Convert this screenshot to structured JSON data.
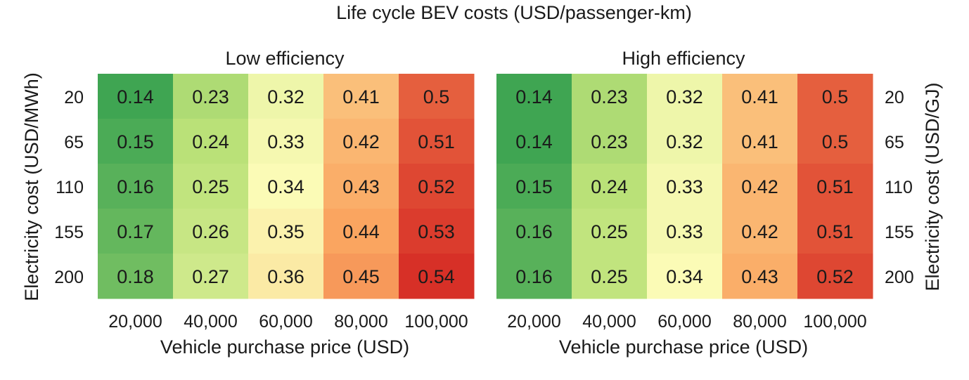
{
  "figure": {
    "title": "Life cycle BEV costs (USD/passenger-km)"
  },
  "colors": {
    "scale_low": "#3fa552",
    "scale_mid": "#fbfbb6",
    "scale_high": "#d73027",
    "text": "#1a1a1a"
  },
  "chart_data": [
    {
      "type": "heatmap",
      "title": "Low efficiency",
      "xlabel": "Vehicle purchase price (USD)",
      "ylabel": "Electricity cost (USD/MWh)",
      "x_categories": [
        "20,000",
        "40,000",
        "60,000",
        "80,000",
        "100,000"
      ],
      "y_categories": [
        "20",
        "65",
        "110",
        "155",
        "200"
      ],
      "values": [
        [
          0.14,
          0.23,
          0.32,
          0.41,
          0.5
        ],
        [
          0.15,
          0.24,
          0.33,
          0.42,
          0.51
        ],
        [
          0.16,
          0.25,
          0.34,
          0.43,
          0.52
        ],
        [
          0.17,
          0.26,
          0.35,
          0.44,
          0.53
        ],
        [
          0.18,
          0.27,
          0.36,
          0.45,
          0.54
        ]
      ],
      "value_labels": [
        [
          "0.14",
          "0.23",
          "0.32",
          "0.41",
          "0.5"
        ],
        [
          "0.15",
          "0.24",
          "0.33",
          "0.42",
          "0.51"
        ],
        [
          "0.16",
          "0.25",
          "0.34",
          "0.43",
          "0.52"
        ],
        [
          "0.17",
          "0.26",
          "0.35",
          "0.44",
          "0.53"
        ],
        [
          "0.18",
          "0.27",
          "0.36",
          "0.45",
          "0.54"
        ]
      ],
      "color_range": [
        0.14,
        0.54
      ]
    },
    {
      "type": "heatmap",
      "title": "High efficiency",
      "xlabel": "Vehicle purchase price (USD)",
      "ylabel": "Electricity cost (USD/GJ)",
      "x_categories": [
        "20,000",
        "40,000",
        "60,000",
        "80,000",
        "100,000"
      ],
      "y_categories": [
        "20",
        "65",
        "110",
        "155",
        "200"
      ],
      "values": [
        [
          0.14,
          0.23,
          0.32,
          0.41,
          0.5
        ],
        [
          0.14,
          0.23,
          0.32,
          0.41,
          0.5
        ],
        [
          0.15,
          0.24,
          0.33,
          0.42,
          0.51
        ],
        [
          0.16,
          0.25,
          0.33,
          0.42,
          0.51
        ],
        [
          0.16,
          0.25,
          0.34,
          0.43,
          0.52
        ]
      ],
      "value_labels": [
        [
          "0.14",
          "0.23",
          "0.32",
          "0.41",
          "0.5"
        ],
        [
          "0.14",
          "0.23",
          "0.32",
          "0.41",
          "0.5"
        ],
        [
          "0.15",
          "0.24",
          "0.33",
          "0.42",
          "0.51"
        ],
        [
          "0.16",
          "0.25",
          "0.33",
          "0.42",
          "0.51"
        ],
        [
          "0.16",
          "0.25",
          "0.34",
          "0.43",
          "0.52"
        ]
      ],
      "color_range": [
        0.14,
        0.54
      ]
    }
  ]
}
